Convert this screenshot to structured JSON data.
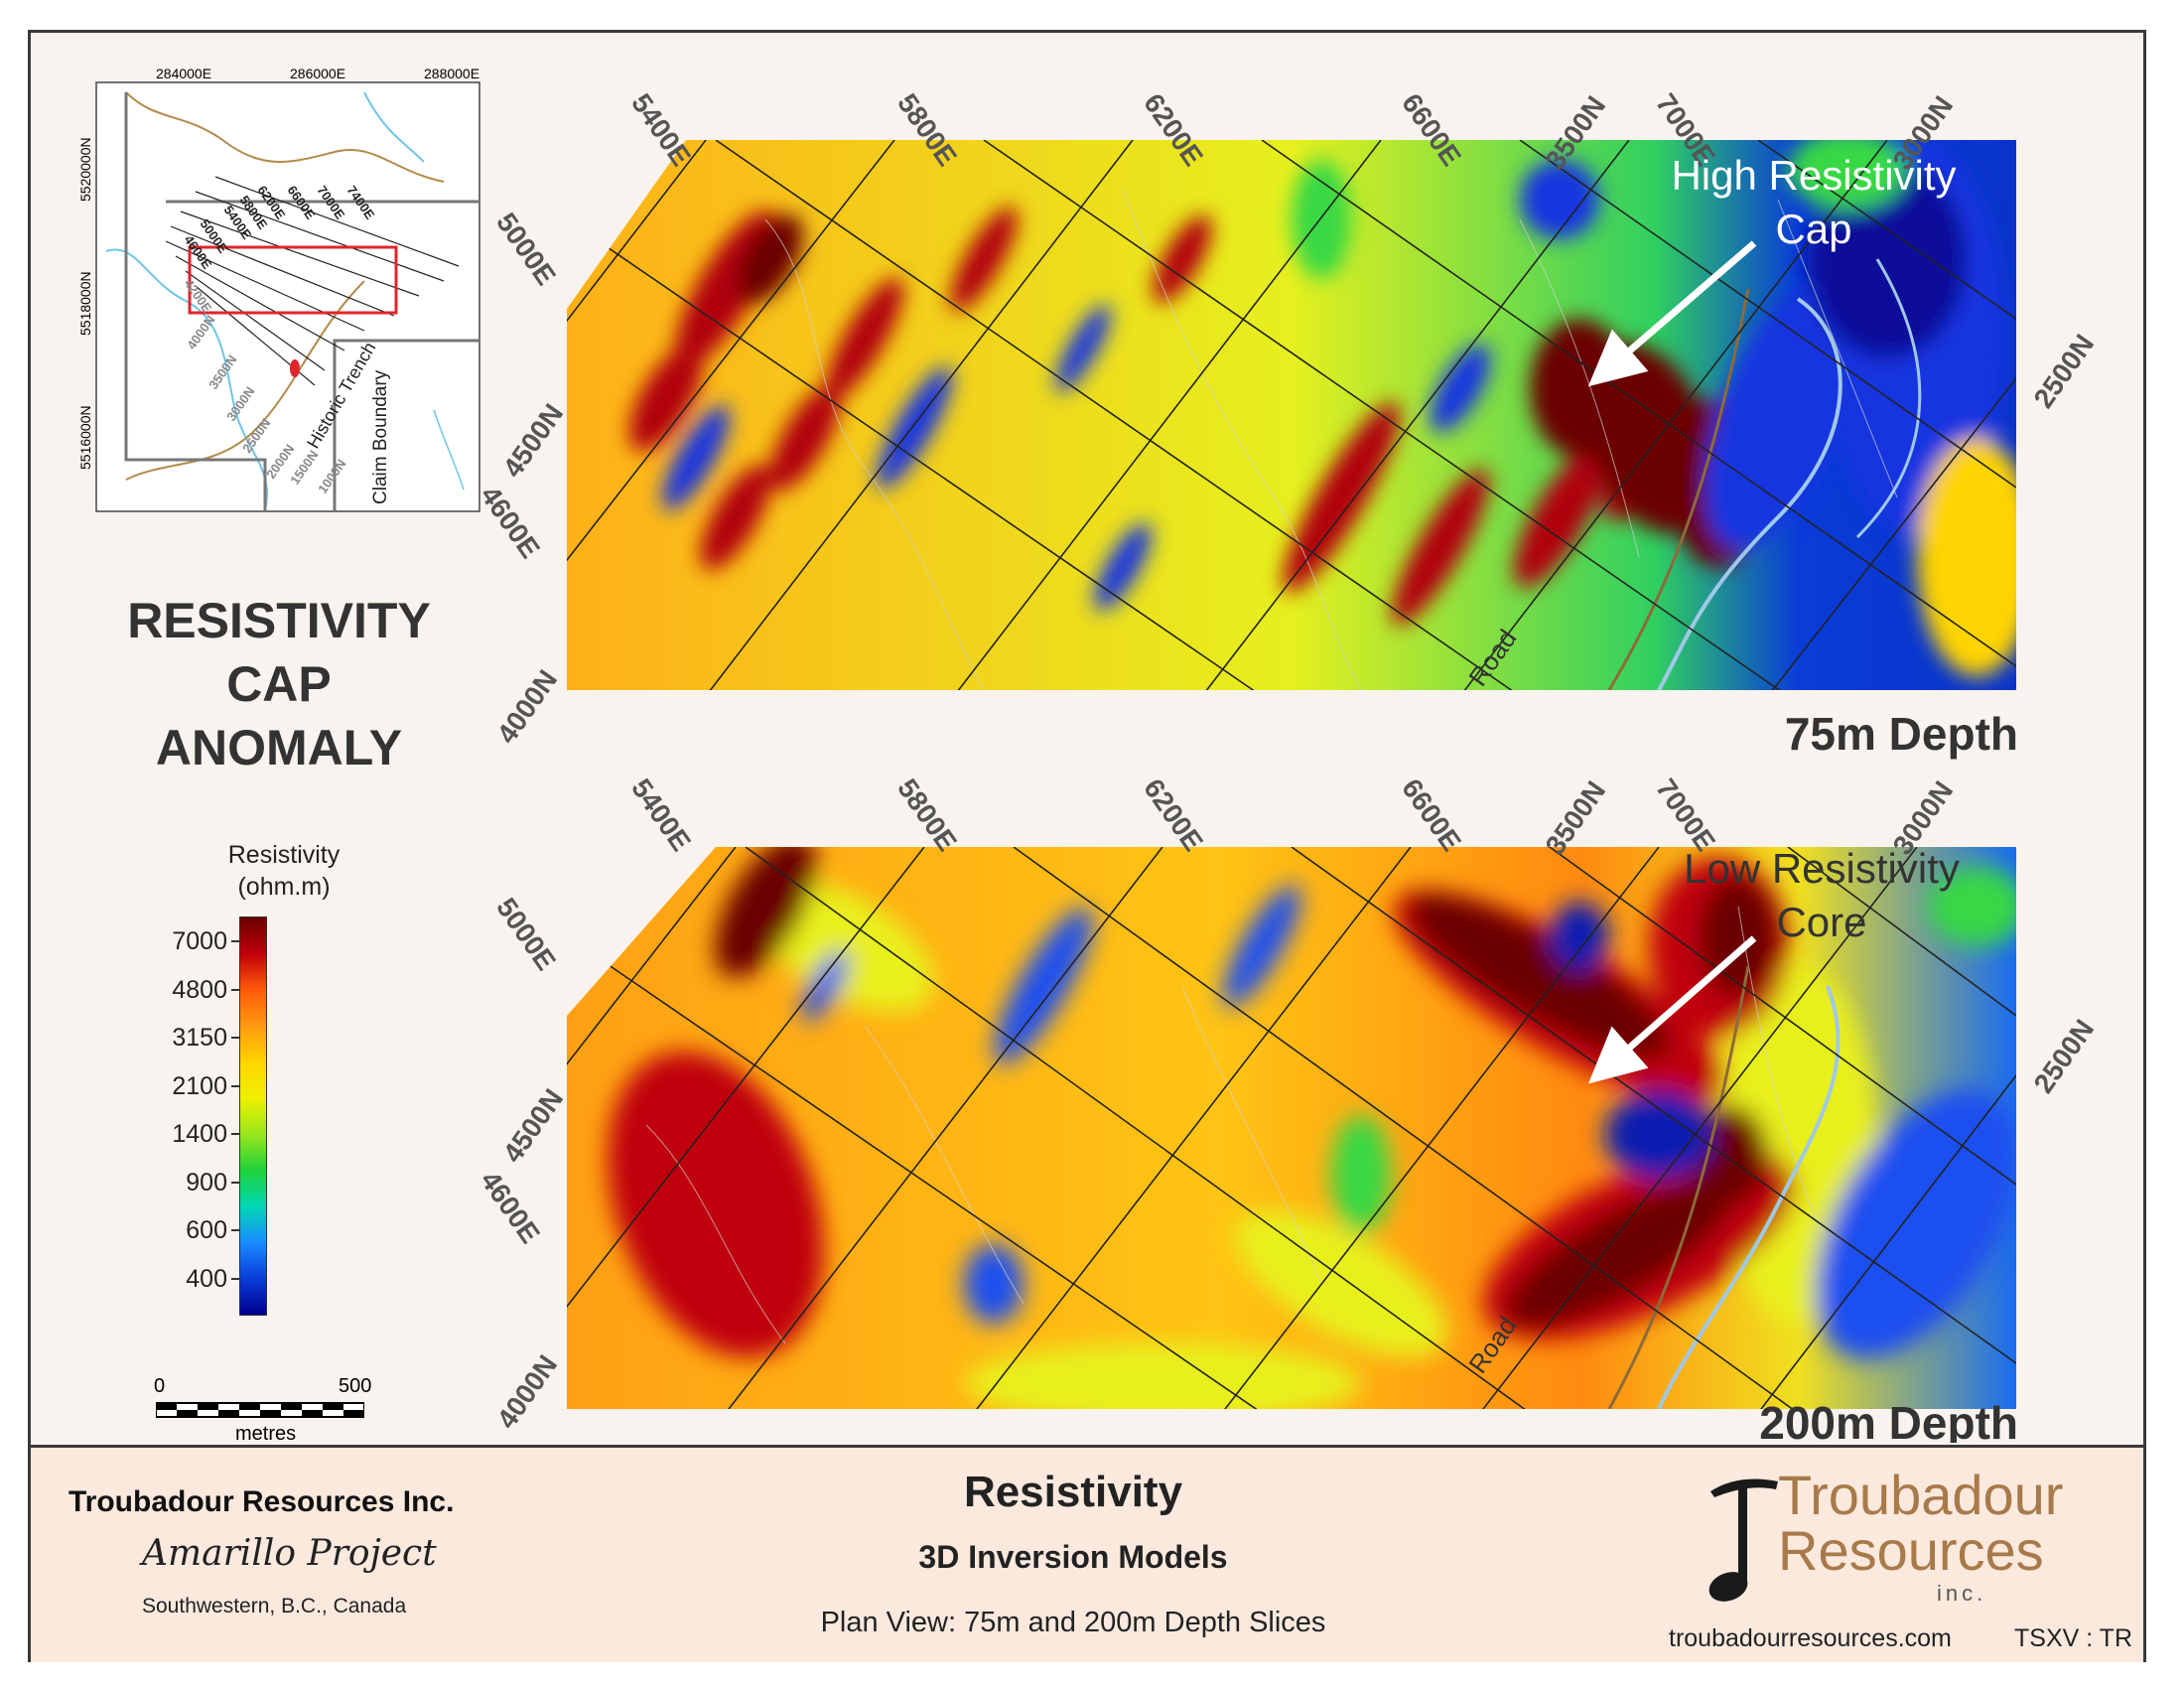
{
  "inset_map": {
    "easting_labels": [
      "284000E",
      "286000E",
      "288000E"
    ],
    "northing_labels": [
      "5520000N",
      "5518000N",
      "5516000N"
    ],
    "line_labels_dark": [
      "7400E",
      "7000E",
      "6600E",
      "6200E",
      "5800E",
      "5400E",
      "5000E",
      "4600E"
    ],
    "line_labels_gray": [
      "4200E",
      "4000N",
      "3500N",
      "3000N",
      "2500N",
      "2000N",
      "1500N",
      "1000N"
    ],
    "historic_trench": "Historic Trench",
    "claim_boundary": "Claim Boundary"
  },
  "anomaly_title": [
    "RESISTIVITY",
    "CAP",
    "ANOMALY"
  ],
  "legend": {
    "title": "Resistivity",
    "units": "(ohm.m)",
    "values": [
      "7000",
      "4800",
      "3150",
      "2100",
      "1400",
      "900",
      "600",
      "400"
    ],
    "colors": [
      "#6b0000",
      "#c0000a",
      "#ff5a0a",
      "#ff9a10",
      "#ffd400",
      "#eef000",
      "#9be61c",
      "#20d23a",
      "#00d8b4",
      "#1a8cff",
      "#0a3cd8",
      "#00008c"
    ]
  },
  "scale_bar": {
    "min": "0",
    "max": "500",
    "unit": "metres"
  },
  "panels": [
    {
      "depth_label": "75m Depth",
      "callout": [
        "High Resistivity",
        "Cap"
      ],
      "grid_labels": [
        "5400E",
        "5800E",
        "6200E",
        "6600E",
        "7000E",
        "3500N",
        "3000N",
        "2500N",
        "5000E",
        "4500N",
        "4600E",
        "4000N"
      ],
      "road_label": "Road"
    },
    {
      "depth_label": "200m Depth",
      "callout": [
        "Low Resistivity",
        "Core"
      ],
      "grid_labels": [
        "5400E",
        "5800E",
        "6200E",
        "6600E",
        "7000E",
        "3500N",
        "3000N",
        "2500N",
        "5000E",
        "4500N",
        "4600E",
        "4000N"
      ],
      "road_label": "Road"
    }
  ],
  "footer": {
    "company": "Troubadour Resources Inc.",
    "project": "Amarillo Project",
    "location": "Southwestern, B.C., Canada",
    "title": "Resistivity",
    "subtitle": "3D Inversion Models",
    "description": "Plan View: 75m and 200m Depth Slices",
    "logo_line1": "Troubadour",
    "logo_line2": "Resources",
    "logo_line3": "inc.",
    "website": "troubadourresources.com",
    "ticker": "TSXV : TR"
  }
}
